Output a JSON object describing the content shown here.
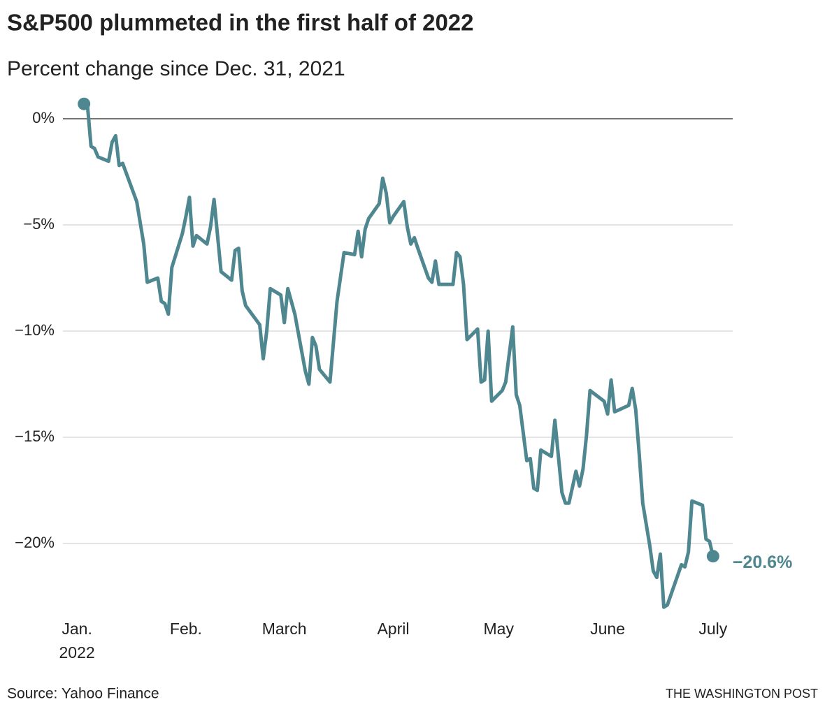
{
  "chart_data": {
    "type": "line",
    "title": "S&P500 plummeted in the first half of 2022",
    "subtitle": "Percent change since Dec. 31, 2021",
    "source": "Source: Yahoo Finance",
    "credit": "THE WASHINGTON POST",
    "x": [
      3,
      4,
      5,
      6,
      7,
      10,
      11,
      12,
      13,
      14,
      18,
      20,
      21,
      24,
      25,
      26,
      27,
      28,
      31,
      32,
      33,
      34,
      35,
      38,
      39,
      40,
      42,
      45,
      46,
      47,
      48,
      49,
      53,
      54,
      55,
      56,
      59,
      60,
      61,
      62,
      63,
      66,
      67,
      68,
      69,
      70,
      73,
      75,
      77,
      80,
      81,
      82,
      83,
      84,
      87,
      88,
      89,
      90,
      91,
      94,
      95,
      96,
      97,
      98,
      101,
      102,
      103,
      104,
      108,
      109,
      110,
      111,
      112,
      115,
      116,
      117,
      118,
      119,
      122,
      123,
      125,
      126,
      127,
      129,
      130,
      131,
      132,
      133,
      136,
      137,
      139,
      140,
      141,
      143,
      144,
      145,
      146,
      147,
      151,
      152,
      153,
      154,
      158,
      159,
      160,
      161,
      162,
      164,
      165,
      166,
      167,
      168,
      169,
      173,
      174,
      175,
      176,
      179,
      180,
      181,
      182
    ],
    "series": [
      {
        "name": "S&P500",
        "color": "#4f8790",
        "values": [
          0.7,
          0.6,
          -1.3,
          -1.4,
          -1.8,
          -2.0,
          -1.1,
          -0.8,
          -2.2,
          -2.1,
          -3.9,
          -5.9,
          -7.7,
          -7.5,
          -8.6,
          -8.7,
          -9.2,
          -7.0,
          -5.4,
          -4.6,
          -3.7,
          -6.0,
          -5.5,
          -5.9,
          -5.1,
          -3.8,
          -7.2,
          -7.6,
          -6.2,
          -6.1,
          -8.1,
          -8.8,
          -9.7,
          -11.3,
          -10.0,
          -8.0,
          -8.3,
          -9.6,
          -8.0,
          -8.6,
          -9.2,
          -11.9,
          -12.5,
          -10.3,
          -10.7,
          -11.8,
          -12.4,
          -8.6,
          -6.3,
          -6.4,
          -5.3,
          -6.5,
          -5.2,
          -4.7,
          -4.0,
          -2.8,
          -3.5,
          -4.9,
          -4.6,
          -3.9,
          -5.1,
          -5.9,
          -5.6,
          -6.1,
          -7.5,
          -7.7,
          -6.7,
          -7.8,
          -7.8,
          -6.3,
          -6.5,
          -7.8,
          -10.4,
          -9.9,
          -12.4,
          -12.3,
          -10.0,
          -13.3,
          -12.8,
          -12.4,
          -9.8,
          -13.0,
          -13.5,
          -16.1,
          -16.0,
          -17.4,
          -17.5,
          -15.6,
          -15.9,
          -14.2,
          -17.6,
          -18.1,
          -18.1,
          -16.6,
          -17.3,
          -16.5,
          -14.9,
          -12.8,
          -13.3,
          -13.9,
          -12.3,
          -13.8,
          -13.5,
          -12.7,
          -13.7,
          -15.8,
          -18.1,
          -20.1,
          -21.3,
          -21.6,
          -20.5,
          -23.0,
          -22.9,
          -21.0,
          -21.1,
          -20.4,
          -18.0,
          -18.2,
          -19.8,
          -19.9,
          -20.6
        ],
        "value_labels": [
          null,
          null,
          null,
          null,
          null,
          null,
          null,
          null,
          null,
          null,
          null,
          null,
          null,
          null,
          null,
          null,
          null,
          null,
          null,
          null,
          null,
          null,
          null,
          null,
          null,
          null,
          null,
          null,
          null,
          null,
          null,
          null,
          null,
          null,
          null,
          null,
          null,
          null,
          null,
          null,
          null,
          null,
          null,
          null,
          null,
          null,
          null,
          null,
          null,
          null,
          null,
          null,
          null,
          null,
          null,
          null,
          null,
          null,
          null,
          null,
          null,
          null,
          null,
          null,
          null,
          null,
          null,
          null,
          null,
          null,
          null,
          null,
          null,
          null,
          null,
          null,
          null,
          null,
          null,
          null,
          null,
          null,
          null,
          null,
          null,
          null,
          null,
          null,
          null,
          null,
          null,
          null,
          null,
          null,
          null,
          null,
          null,
          null,
          null,
          null,
          null,
          null,
          null,
          null,
          null,
          null,
          null,
          null,
          null,
          null,
          null,
          null,
          null,
          null,
          null,
          null,
          null,
          null,
          null,
          null,
          "−20.6%"
        ]
      }
    ],
    "xlim": [
      -3,
      188
    ],
    "xticks": [
      {
        "value": 1,
        "label": "Jan.",
        "sublabel": "2022"
      },
      {
        "value": 32,
        "label": "Feb."
      },
      {
        "value": 60,
        "label": "March"
      },
      {
        "value": 91,
        "label": "April"
      },
      {
        "value": 121,
        "label": "May"
      },
      {
        "value": 152,
        "label": "June"
      },
      {
        "value": 182,
        "label": "July"
      }
    ],
    "ylim": [
      -23.5,
      1
    ],
    "yticks": [
      {
        "value": 0,
        "label": "0%"
      },
      {
        "value": -5,
        "label": "−5%"
      },
      {
        "value": -10,
        "label": "−10%"
      },
      {
        "value": -15,
        "label": "−15%"
      },
      {
        "value": -20,
        "label": "−20%"
      }
    ],
    "grid": true
  }
}
